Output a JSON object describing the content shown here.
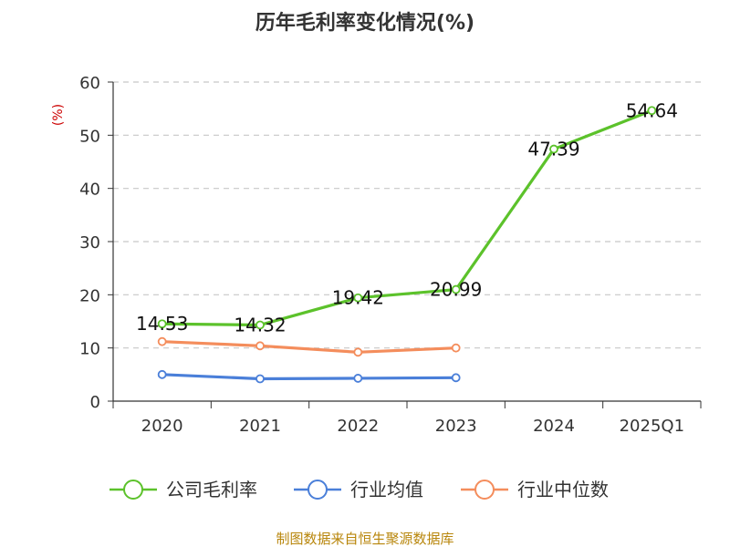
{
  "chart_data": {
    "type": "line",
    "title": "历年毛利率变化情况(%)",
    "ylabel": "(%)",
    "categories": [
      "2020",
      "2021",
      "2022",
      "2023",
      "2024",
      "2025Q1"
    ],
    "ylim": [
      0,
      60
    ],
    "yticks": [
      0,
      10,
      20,
      30,
      40,
      50,
      60
    ],
    "grid": true,
    "legend_position": "bottom",
    "series": [
      {
        "name": "公司毛利率",
        "color": "#5cc22b",
        "values": [
          14.53,
          14.32,
          19.42,
          20.99,
          47.39,
          54.64
        ],
        "labels": [
          "14.53",
          "14.32",
          "19.42",
          "20.99",
          "47.39",
          "54.64"
        ]
      },
      {
        "name": "行业均值",
        "color": "#4a7fd9",
        "values": [
          5.0,
          4.2,
          4.3,
          4.4,
          null,
          null
        ]
      },
      {
        "name": "行业中位数",
        "color": "#f48d5c",
        "values": [
          11.2,
          10.4,
          9.2,
          10.0,
          null,
          null
        ]
      }
    ]
  },
  "footer": {
    "source": "制图数据来自恒生聚源数据库"
  }
}
